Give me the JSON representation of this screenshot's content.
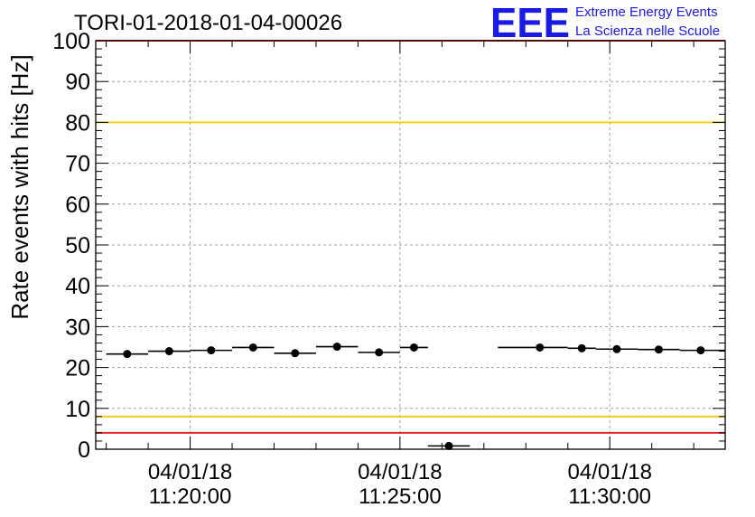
{
  "chart_data": {
    "type": "scatter",
    "title": "TORI-01-2018-01-04-00026",
    "ylabel": "Rate events with hits [Hz]",
    "xlabel": "",
    "ylim": [
      0,
      100
    ],
    "yticks": [
      0,
      10,
      20,
      30,
      40,
      50,
      60,
      70,
      80,
      90,
      100
    ],
    "xlim": [
      "2018-01-04 11:17:45",
      "2018-01-04 11:32:45"
    ],
    "xticks": [
      {
        "time": "2018-01-04 11:20:00",
        "date_label": "04/01/18",
        "time_label": "11:20:00"
      },
      {
        "time": "2018-01-04 11:25:00",
        "date_label": "04/01/18",
        "time_label": "11:25:00"
      },
      {
        "time": "2018-01-04 11:30:00",
        "date_label": "04/01/18",
        "time_label": "11:30:00"
      }
    ],
    "grid": true,
    "points": [
      {
        "x": "2018-01-04 11:18:30",
        "x_start": "2018-01-04 11:18:00",
        "x_end": "2018-01-04 11:19:00",
        "y": 23.3
      },
      {
        "x": "2018-01-04 11:19:30",
        "x_start": "2018-01-04 11:19:00",
        "x_end": "2018-01-04 11:20:00",
        "y": 24.0
      },
      {
        "x": "2018-01-04 11:20:30",
        "x_start": "2018-01-04 11:20:00",
        "x_end": "2018-01-04 11:21:00",
        "y": 24.2
      },
      {
        "x": "2018-01-04 11:21:30",
        "x_start": "2018-01-04 11:21:00",
        "x_end": "2018-01-04 11:22:00",
        "y": 24.9
      },
      {
        "x": "2018-01-04 11:22:30",
        "x_start": "2018-01-04 11:22:00",
        "x_end": "2018-01-04 11:23:00",
        "y": 23.5
      },
      {
        "x": "2018-01-04 11:23:30",
        "x_start": "2018-01-04 11:23:00",
        "x_end": "2018-01-04 11:24:00",
        "y": 25.1
      },
      {
        "x": "2018-01-04 11:24:30",
        "x_start": "2018-01-04 11:24:00",
        "x_end": "2018-01-04 11:25:00",
        "y": 23.7
      },
      {
        "x": "2018-01-04 11:25:20",
        "x_start": "2018-01-04 11:25:00",
        "x_end": "2018-01-04 11:25:40",
        "y": 24.9
      },
      {
        "x": "2018-01-04 11:26:10",
        "x_start": "2018-01-04 11:25:40",
        "x_end": "2018-01-04 11:26:40",
        "y": 0.8
      },
      {
        "x": "2018-01-04 11:28:20",
        "x_start": "2018-01-04 11:27:20",
        "x_end": "2018-01-04 11:29:00",
        "y": 24.9
      },
      {
        "x": "2018-01-04 11:29:20",
        "x_start": "2018-01-04 11:29:00",
        "x_end": "2018-01-04 11:29:40",
        "y": 24.7
      },
      {
        "x": "2018-01-04 11:30:10",
        "x_start": "2018-01-04 11:29:40",
        "x_end": "2018-01-04 11:30:40",
        "y": 24.5
      },
      {
        "x": "2018-01-04 11:31:10",
        "x_start": "2018-01-04 11:30:40",
        "x_end": "2018-01-04 11:31:40",
        "y": 24.4
      },
      {
        "x": "2018-01-04 11:32:10",
        "x_start": "2018-01-04 11:31:40",
        "x_end": "2018-01-04 11:32:45",
        "y": 24.2
      }
    ],
    "reference_lines": [
      {
        "y": 100,
        "color": "#e8262a"
      },
      {
        "y": 80,
        "color": "#f2cf1e"
      },
      {
        "y": 8,
        "color": "#f2cf1e"
      },
      {
        "y": 4,
        "color": "#e8262a"
      }
    ],
    "marker_color": "#000000",
    "logo": {
      "mark": "EEE",
      "line1": "Extreme Energy Events",
      "line2": "La Scienza nelle Scuole",
      "color": "#1a1ae6"
    }
  }
}
